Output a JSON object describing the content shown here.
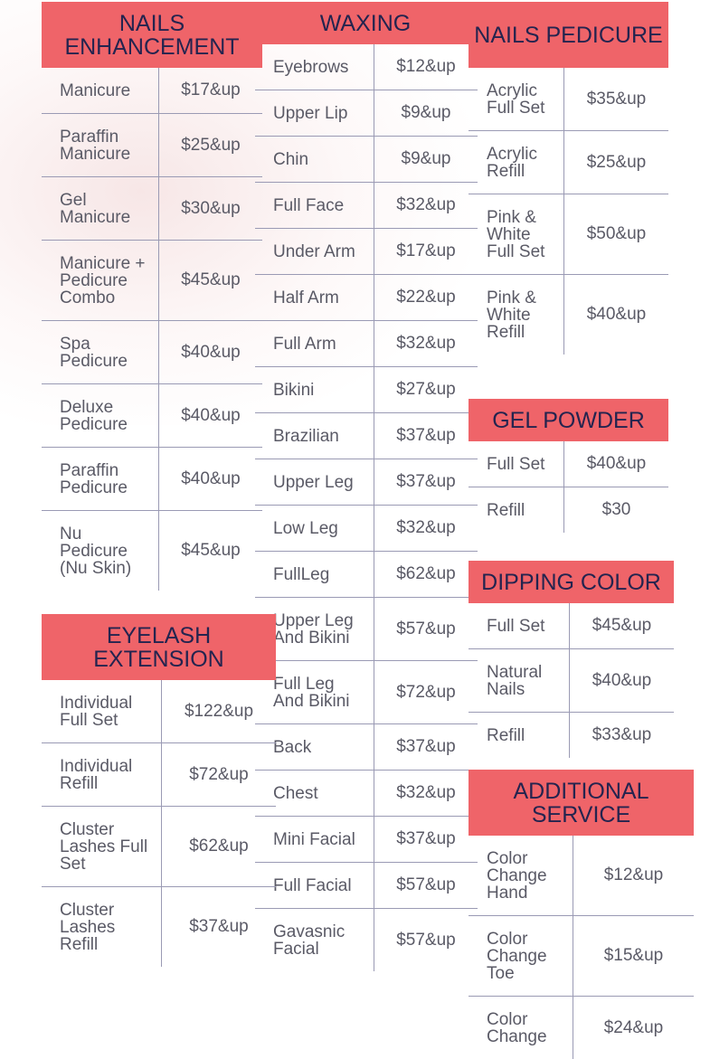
{
  "sections": [
    {
      "title": "NAILS ENHANCEMENT",
      "rows": [
        {
          "name": "Manicure",
          "price": "$17&up"
        },
        {
          "name": "Paraffin Manicure",
          "price": "$25&up"
        },
        {
          "name": "Gel Manicure",
          "price": "$30&up"
        },
        {
          "name": "Manicure + Pedicure Combo",
          "price": "$45&up"
        },
        {
          "name": "Spa Pedicure",
          "price": "$40&up"
        },
        {
          "name": "Deluxe Pedicure",
          "price": "$40&up"
        },
        {
          "name": "Paraffin Pedicure",
          "price": "$40&up"
        },
        {
          "name": "Nu Pedicure (Nu Skin)",
          "price": "$45&up"
        }
      ]
    },
    {
      "title": "WAXING",
      "rows": [
        {
          "name": "Eyebrows",
          "price": "$12&up"
        },
        {
          "name": "Upper Lip",
          "price": "$9&up"
        },
        {
          "name": "Chin",
          "price": "$9&up"
        },
        {
          "name": "Full Face",
          "price": "$32&up"
        },
        {
          "name": "Under Arm",
          "price": "$17&up"
        },
        {
          "name": "Half Arm",
          "price": "$22&up"
        },
        {
          "name": "Full Arm",
          "price": "$32&up"
        },
        {
          "name": "Bikini",
          "price": "$27&up"
        },
        {
          "name": "Brazilian",
          "price": "$37&up"
        },
        {
          "name": "Upper Leg",
          "price": "$37&up"
        },
        {
          "name": "Low Leg",
          "price": "$32&up"
        },
        {
          "name": "FullLeg",
          "price": "$62&up"
        },
        {
          "name": "Upper Leg And Bikini",
          "price": "$57&up"
        },
        {
          "name": "Full Leg And Bikini",
          "price": "$72&up"
        },
        {
          "name": "Back",
          "price": "$37&up"
        },
        {
          "name": "Chest",
          "price": "$32&up"
        },
        {
          "name": "Mini Facial",
          "price": "$37&up"
        },
        {
          "name": "Full Facial",
          "price": "$57&up"
        },
        {
          "name": "Gavasnic Facial",
          "price": "$57&up"
        }
      ]
    },
    {
      "title": "NAILS PEDICURE",
      "rows": [
        {
          "name": "Acrylic Full Set",
          "price": "$35&up"
        },
        {
          "name": "Acrylic Refill",
          "price": "$25&up"
        },
        {
          "name": "Pink & White Full Set",
          "price": "$50&up"
        },
        {
          "name": "Pink & White Refill",
          "price": "$40&up"
        }
      ]
    },
    {
      "title": "GEL POWDER",
      "rows": [
        {
          "name": "Full Set",
          "price": "$40&up"
        },
        {
          "name": "Refill",
          "price": "$30"
        }
      ]
    },
    {
      "title": "DIPPING COLOR",
      "rows": [
        {
          "name": "Full Set",
          "price": "$45&up"
        },
        {
          "name": "Natural Nails",
          "price": "$40&up"
        },
        {
          "name": "Refill",
          "price": "$33&up"
        }
      ]
    },
    {
      "title": "EYELASH EXTENSION",
      "rows": [
        {
          "name": "Individual Full Set",
          "price": "$122&up"
        },
        {
          "name": "Individual Refill",
          "price": "$72&up"
        },
        {
          "name": "Cluster Lashes Full Set",
          "price": "$62&up"
        },
        {
          "name": "Cluster Lashes Refill",
          "price": "$37&up"
        }
      ]
    },
    {
      "title": "ADDITIONAL SERVICE",
      "rows": [
        {
          "name": "Color Change Hand",
          "price": "$12&up"
        },
        {
          "name": "Color Change Toe",
          "price": "$15&up"
        },
        {
          "name": "Color Change",
          "price": "$24&up"
        }
      ]
    }
  ]
}
